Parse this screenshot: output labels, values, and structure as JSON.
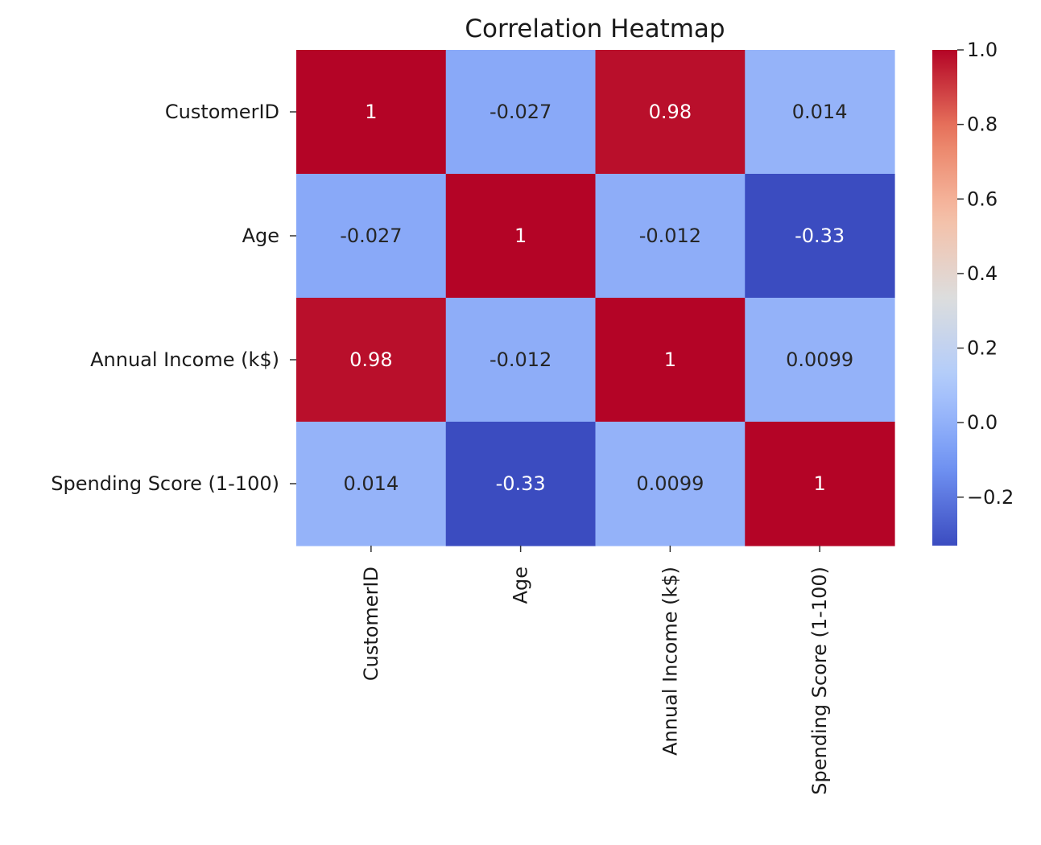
{
  "chart_data": {
    "type": "heatmap",
    "title": "Correlation Heatmap",
    "xlabel": "",
    "ylabel": "",
    "x_categories": [
      "CustomerID",
      "Age",
      "Annual Income (k$)",
      "Spending Score (1-100)"
    ],
    "y_categories": [
      "CustomerID",
      "Age",
      "Annual Income (k$)",
      "Spending Score (1-100)"
    ],
    "values": [
      [
        1,
        -0.027,
        0.98,
        0.014
      ],
      [
        -0.027,
        1,
        -0.012,
        -0.33
      ],
      [
        0.98,
        -0.012,
        1,
        0.0099
      ],
      [
        0.014,
        -0.33,
        0.0099,
        1
      ]
    ],
    "annotations": [
      [
        "1",
        "-0.027",
        "0.98",
        "0.014"
      ],
      [
        "-0.027",
        "1",
        "-0.012",
        "-0.33"
      ],
      [
        "0.98",
        "-0.012",
        "1",
        "0.0099"
      ],
      [
        "0.014",
        "-0.33",
        "0.0099",
        "1"
      ]
    ],
    "colormap": "coolwarm",
    "colormap_stops": [
      "#3b4cc0",
      "#7396f5",
      "#b0cbfc",
      "#dcdddd",
      "#f6bfa6",
      "#ea7b60",
      "#b40426"
    ],
    "value_range": [
      -0.33,
      1
    ],
    "colorbar": {
      "ticks": [
        1.0,
        0.8,
        0.6,
        0.4,
        0.2,
        0.0,
        -0.2
      ],
      "tick_labels": [
        "1.0",
        "0.8",
        "0.6",
        "0.4",
        "0.2",
        "0.0",
        "−0.2"
      ]
    },
    "grid": false,
    "legend": "colorbar-right"
  }
}
